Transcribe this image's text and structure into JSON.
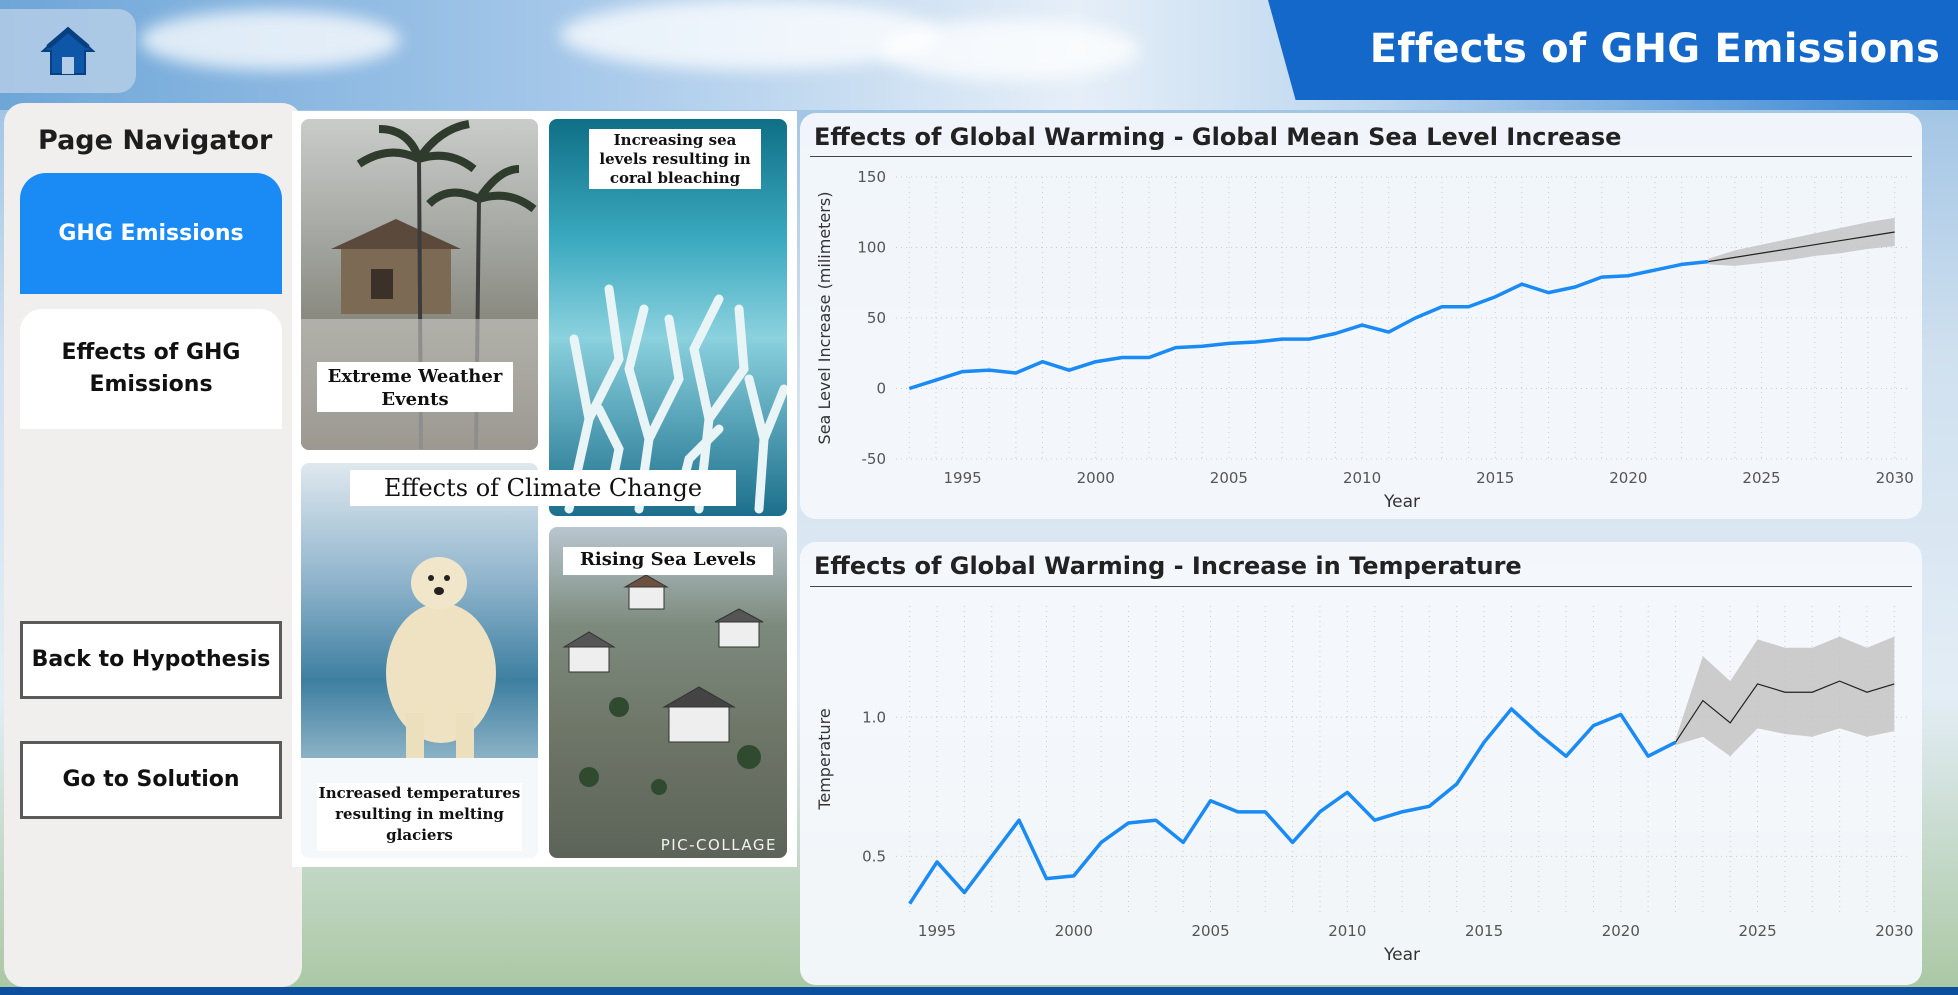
{
  "header": {
    "title": "Effects of GHG Emissions",
    "home_icon": "home-icon",
    "accent": "#1368c9"
  },
  "navigator": {
    "heading": "Page Navigator",
    "active_label": "GHG Emissions",
    "effects_label": "Effects of GHG Emissions",
    "back_label": "Back to Hypothesis",
    "solution_label": "Go to Solution",
    "active_color": "#1a8af5"
  },
  "collage": {
    "title": "Effects of Climate Change",
    "captions": {
      "weather": "Extreme Weather Events",
      "coral": "Increasing sea levels resulting in coral bleaching",
      "glaciers": "Increased temperatures resulting in melting glaciers",
      "sea": "Rising Sea Levels"
    },
    "watermark": "PIC-COLLAGE"
  },
  "chart_data": [
    {
      "type": "line",
      "title": "Effects of Global Warming - Global Mean Sea Level Increase",
      "xlabel": "Year",
      "ylabel": "Sea Level Increase (milimeters)",
      "xlim": [
        1992.5,
        2030.5
      ],
      "ylim": [
        -50,
        150
      ],
      "yticks": [
        -50,
        0,
        50,
        100,
        150
      ],
      "xticks": [
        1995,
        2000,
        2005,
        2010,
        2015,
        2020,
        2025,
        2030
      ],
      "grid": true,
      "series": [
        {
          "color": "#1a8af5",
          "x": [
            1993,
            1994,
            1995,
            1996,
            1997,
            1998,
            1999,
            2000,
            2001,
            2002,
            2003,
            2004,
            2005,
            2006,
            2007,
            2008,
            2009,
            2010,
            2011,
            2012,
            2013,
            2014,
            2015,
            2016,
            2017,
            2018,
            2019,
            2020,
            2021,
            2022,
            2023
          ],
          "values": [
            0,
            6,
            12,
            13,
            11,
            19,
            13,
            19,
            22,
            22,
            29,
            30,
            32,
            33,
            35,
            35,
            39,
            45,
            40,
            50,
            58,
            58,
            65,
            74,
            68,
            72,
            79,
            80,
            84,
            88,
            90
          ]
        }
      ],
      "forecast": {
        "x": [
          2023,
          2024,
          2025,
          2026,
          2027,
          2028,
          2029,
          2030
        ],
        "values": [
          90,
          93,
          96,
          99,
          102,
          105,
          108,
          111
        ],
        "lower": [
          88,
          87,
          89,
          91,
          94,
          96,
          99,
          101
        ],
        "upper": [
          92,
          98,
          102,
          106,
          110,
          114,
          118,
          121
        ]
      }
    },
    {
      "type": "line",
      "title": "Effects of Global Warming - Increase in Temperature",
      "xlabel": "Year",
      "ylabel": "Temperature",
      "xlim": [
        1993.5,
        2030.5
      ],
      "ylim": [
        0.3,
        1.4
      ],
      "yticks": [
        0.5,
        1.0
      ],
      "ytick_labels": [
        "0.5",
        "1.0"
      ],
      "xticks": [
        1995,
        2000,
        2005,
        2010,
        2015,
        2020,
        2025,
        2030
      ],
      "grid": true,
      "series": [
        {
          "color": "#1a8af5",
          "x": [
            1994,
            1995,
            1996,
            1997,
            1998,
            1999,
            2000,
            2001,
            2002,
            2003,
            2004,
            2005,
            2006,
            2007,
            2008,
            2009,
            2010,
            2011,
            2012,
            2013,
            2014,
            2015,
            2016,
            2017,
            2018,
            2019,
            2020,
            2021,
            2022
          ],
          "values": [
            0.33,
            0.48,
            0.37,
            0.5,
            0.63,
            0.42,
            0.43,
            0.55,
            0.62,
            0.63,
            0.55,
            0.7,
            0.66,
            0.66,
            0.55,
            0.66,
            0.73,
            0.63,
            0.66,
            0.68,
            0.76,
            0.91,
            1.03,
            0.94,
            0.86,
            0.97,
            1.01,
            0.86,
            0.91
          ]
        }
      ],
      "forecast": {
        "x": [
          2022,
          2023,
          2024,
          2025,
          2026,
          2027,
          2028,
          2029,
          2030
        ],
        "values": [
          0.91,
          1.06,
          0.98,
          1.12,
          1.09,
          1.09,
          1.13,
          1.09,
          1.12
        ],
        "lower": [
          0.9,
          0.93,
          0.86,
          0.96,
          0.94,
          0.93,
          0.96,
          0.93,
          0.95
        ],
        "upper": [
          0.92,
          1.22,
          1.13,
          1.28,
          1.25,
          1.25,
          1.29,
          1.25,
          1.29
        ]
      }
    }
  ]
}
